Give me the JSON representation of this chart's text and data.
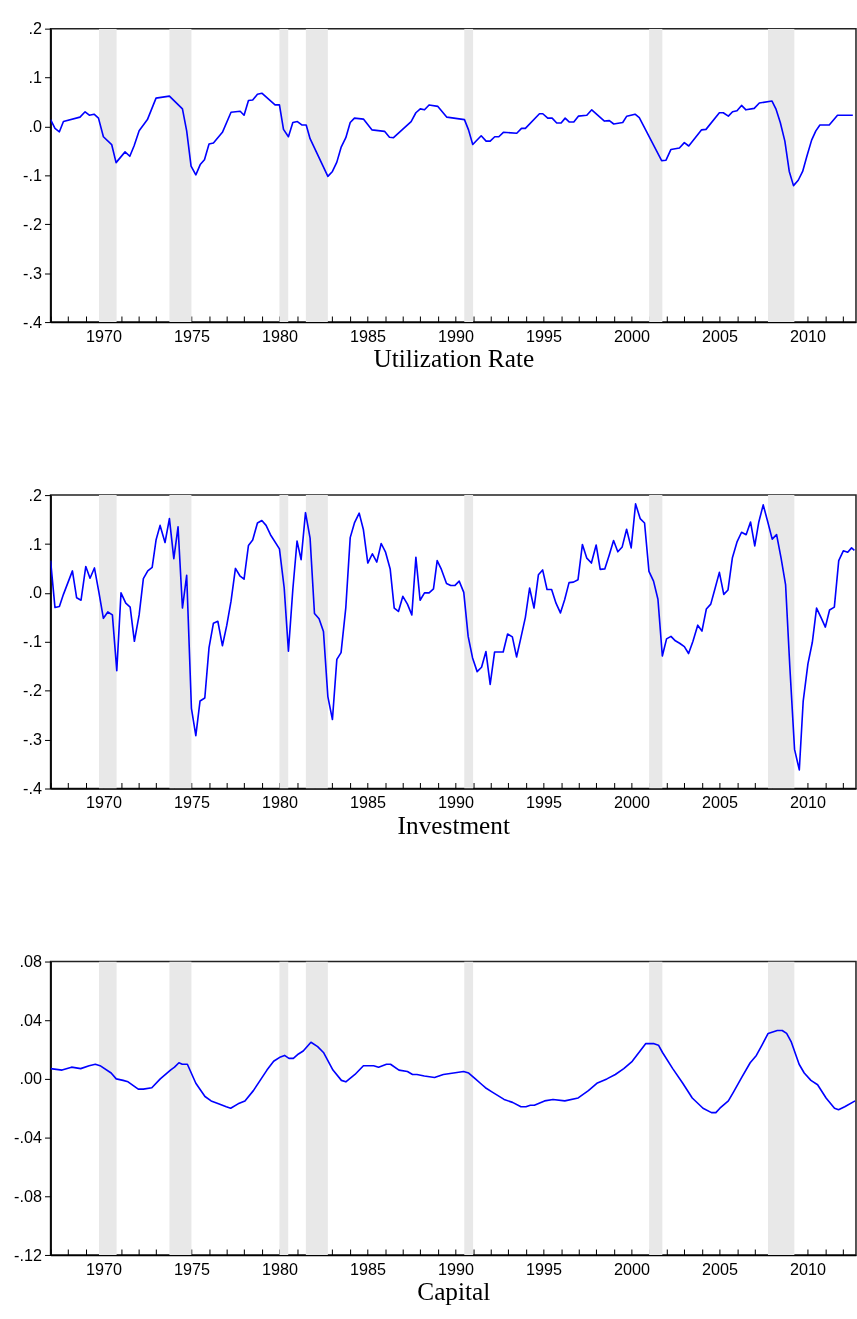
{
  "chart_data": [
    {
      "type": "line",
      "xlabel": "Utilization Rate",
      "x": [
        1967.0,
        1967.25,
        1967.5,
        1967.73,
        1968.67,
        1968.96,
        1969.2,
        1969.47,
        1969.72,
        1970.0,
        1970.47,
        1970.72,
        1971.23,
        1971.5,
        1971.74,
        1972.03,
        1972.5,
        1972.99,
        1973.75,
        1974.49,
        1974.73,
        1974.98,
        1975.25,
        1975.5,
        1975.74,
        1976.0,
        1976.25,
        1976.76,
        1977.25,
        1977.77,
        1977.99,
        1978.24,
        1978.48,
        1978.75,
        1979.0,
        1979.75,
        1980.0,
        1980.23,
        1980.51,
        1980.76,
        1981.02,
        1981.27,
        1981.52,
        1981.74,
        1982.75,
        1983.01,
        1983.26,
        1983.5,
        1983.77,
        1984.02,
        1984.26,
        1984.77,
        1985.25,
        1985.97,
        1986.25,
        1986.48,
        1987.48,
        1987.75,
        1988.0,
        1988.24,
        1988.5,
        1989.0,
        1989.51,
        1990.51,
        1990.74,
        1990.98,
        1991.46,
        1991.74,
        1991.97,
        1992.23,
        1992.46,
        1992.72,
        1993.48,
        1993.75,
        1993.97,
        1994.77,
        1994.96,
        1995.24,
        1995.49,
        1995.75,
        1996.0,
        1996.23,
        1996.47,
        1996.72,
        1996.98,
        1997.46,
        1997.74,
        1998.46,
        1998.74,
        1998.99,
        1999.5,
        1999.73,
        2000.2,
        2000.44,
        2001.71,
        2001.96,
        2002.24,
        2002.72,
        2003.0,
        2003.25,
        2003.98,
        2004.23,
        2004.99,
        2005.21,
        2005.5,
        2005.74,
        2005.99,
        2006.25,
        2006.5,
        2006.97,
        2007.26,
        2007.98,
        2008.2,
        2008.45,
        2008.71,
        2008.96,
        2009.2,
        2009.47,
        2009.72,
        2009.96,
        2010.23,
        2010.47,
        2010.7,
        2011.23,
        2011.7,
        2012.57
      ],
      "series": [
        {
          "color": "#0000ff",
          "values": [
            0.014,
            -0.004,
            -0.011,
            0.01,
            0.019,
            0.03,
            0.023,
            0.025,
            0.017,
            -0.021,
            -0.037,
            -0.074,
            -0.052,
            -0.061,
            -0.04,
            -0.009,
            0.014,
            0.058,
            0.062,
            0.036,
            -0.009,
            -0.081,
            -0.099,
            -0.078,
            -0.068,
            -0.036,
            -0.034,
            -0.012,
            0.029,
            0.031,
            0.023,
            0.053,
            0.054,
            0.066,
            0.068,
            0.044,
            0.044,
            -0.006,
            -0.021,
            0.008,
            0.01,
            0.003,
            0.003,
            -0.025,
            -0.102,
            -0.092,
            -0.073,
            -0.043,
            -0.023,
            0.008,
            0.017,
            0.015,
            -0.007,
            -0.01,
            -0.022,
            -0.023,
            0.01,
            0.028,
            0.036,
            0.034,
            0.044,
            0.041,
            0.019,
            0.014,
            -0.007,
            -0.037,
            -0.019,
            -0.03,
            -0.03,
            -0.021,
            -0.021,
            -0.012,
            -0.014,
            -0.004,
            -0.004,
            0.026,
            0.026,
            0.017,
            0.017,
            0.007,
            0.007,
            0.017,
            0.009,
            0.009,
            0.021,
            0.023,
            0.034,
            0.011,
            0.012,
            0.005,
            0.008,
            0.021,
            0.025,
            0.018,
            -0.07,
            -0.069,
            -0.047,
            -0.044,
            -0.033,
            -0.04,
            -0.007,
            -0.006,
            0.028,
            0.028,
            0.021,
            0.03,
            0.032,
            0.043,
            0.034,
            0.037,
            0.048,
            0.052,
            0.036,
            0.008,
            -0.03,
            -0.092,
            -0.121,
            -0.11,
            -0.092,
            -0.061,
            -0.028,
            -0.009,
            0.003,
            0.003,
            0.023,
            0.023
          ]
        }
      ],
      "xlim": [
        1967,
        2012.75
      ],
      "xticks": [
        {
          "value": 1967,
          "label": null
        },
        {
          "value": 1968,
          "label": null
        },
        {
          "value": 1969,
          "label": null
        },
        1970,
        {
          "value": 1971,
          "label": null
        },
        {
          "value": 1972,
          "label": null
        },
        {
          "value": 1973,
          "label": null
        },
        {
          "value": 1974,
          "label": null
        },
        1975,
        {
          "value": 1976,
          "label": null
        },
        {
          "value": 1977,
          "label": null
        },
        {
          "value": 1978,
          "label": null
        },
        {
          "value": 1979,
          "label": null
        },
        1980,
        {
          "value": 1981,
          "label": null
        },
        {
          "value": 1982,
          "label": null
        },
        {
          "value": 1983,
          "label": null
        },
        {
          "value": 1984,
          "label": null
        },
        1985,
        {
          "value": 1986,
          "label": null
        },
        {
          "value": 1987,
          "label": null
        },
        {
          "value": 1988,
          "label": null
        },
        {
          "value": 1989,
          "label": null
        },
        1990,
        {
          "value": 1991,
          "label": null
        },
        {
          "value": 1992,
          "label": null
        },
        {
          "value": 1993,
          "label": null
        },
        {
          "value": 1994,
          "label": null
        },
        1995,
        {
          "value": 1996,
          "label": null
        },
        {
          "value": 1997,
          "label": null
        },
        {
          "value": 1998,
          "label": null
        },
        {
          "value": 1999,
          "label": null
        },
        2000,
        {
          "value": 2001,
          "label": null
        },
        {
          "value": 2002,
          "label": null
        },
        {
          "value": 2003,
          "label": null
        },
        {
          "value": 2004,
          "label": null
        },
        2005,
        {
          "value": 2006,
          "label": null
        },
        {
          "value": 2007,
          "label": null
        },
        {
          "value": 2008,
          "label": null
        },
        {
          "value": 2009,
          "label": null
        },
        2010,
        {
          "value": 2011,
          "label": null
        },
        {
          "value": 2012,
          "label": null
        }
      ],
      "ylim": [
        -0.4,
        0.2
      ],
      "yticks": [
        {
          "value": -0.4,
          "label": "-.4"
        },
        {
          "value": -0.3,
          "label": "-.3"
        },
        {
          "value": -0.2,
          "label": "-.2"
        },
        {
          "value": -0.1,
          "label": "-.1"
        },
        {
          "value": 0,
          "label": ".0"
        },
        {
          "value": 0.1,
          "label": ".1"
        },
        {
          "value": 0.2,
          "label": ".2"
        }
      ],
      "bands": [
        {
          "axis": "x",
          "from": 1969.75,
          "to": 1970.75,
          "color": "#e8e8e8"
        },
        {
          "axis": "x",
          "from": 1973.75,
          "to": 1975.0,
          "color": "#e8e8e8"
        },
        {
          "axis": "x",
          "from": 1980.0,
          "to": 1980.5,
          "color": "#e8e8e8"
        },
        {
          "axis": "x",
          "from": 1981.5,
          "to": 1982.75,
          "color": "#e8e8e8"
        },
        {
          "axis": "x",
          "from": 1990.5,
          "to": 1991.0,
          "color": "#e8e8e8"
        },
        {
          "axis": "x",
          "from": 2001.0,
          "to": 2001.75,
          "color": "#e8e8e8"
        },
        {
          "axis": "x",
          "from": 2007.75,
          "to": 2009.25,
          "color": "#e8e8e8"
        }
      ]
    },
    {
      "type": "line",
      "xlabel": "Investment",
      "x": [
        1967.0,
        1967.25,
        1967.5,
        1967.73,
        1968.24,
        1968.48,
        1968.73,
        1969.0,
        1969.24,
        1969.49,
        1969.75,
        1970.0,
        1970.25,
        1970.51,
        1970.76,
        1971.0,
        1971.27,
        1971.52,
        1971.76,
        1972.03,
        1972.27,
        1972.52,
        1972.77,
        1972.99,
        1973.22,
        1973.5,
        1973.75,
        1974.0,
        1974.24,
        1974.49,
        1974.73,
        1975.0,
        1975.25,
        1975.49,
        1975.76,
        1976.0,
        1976.25,
        1976.5,
        1976.76,
        1977.01,
        1977.25,
        1977.5,
        1977.75,
        1977.99,
        1978.24,
        1978.48,
        1978.75,
        1979.0,
        1979.24,
        1979.49,
        1980.0,
        1980.27,
        1980.51,
        1980.76,
        1981.0,
        1981.23,
        1981.48,
        1981.74,
        1981.99,
        1982.25,
        1982.5,
        1982.75,
        1983.01,
        1983.26,
        1983.5,
        1983.77,
        1984.02,
        1984.26,
        1984.53,
        1984.77,
        1985.02,
        1985.28,
        1985.53,
        1985.78,
        1986.02,
        1986.29,
        1986.52,
        1986.76,
        1987.01,
        1987.27,
        1987.52,
        1987.75,
        1987.99,
        1988.24,
        1988.5,
        1988.75,
        1988.96,
        1989.2,
        1989.49,
        1989.73,
        1989.96,
        1990.21,
        1990.47,
        1990.72,
        1990.97,
        1991.23,
        1991.48,
        1991.73,
        1991.97,
        1992.22,
        1992.71,
        1992.96,
        1993.23,
        1993.47,
        1993.72,
        1993.97,
        1994.21,
        1994.46,
        1994.71,
        1994.95,
        1995.2,
        1995.46,
        1995.71,
        1995.96,
        1996.2,
        1996.45,
        1996.7,
        1996.96,
        1997.21,
        1997.46,
        1997.72,
        1997.99,
        1998.22,
        1998.48,
        1998.73,
        1998.98,
        1999.22,
        1999.47,
        1999.72,
        1999.98,
        2000.23,
        2000.49,
        2000.74,
        2000.99,
        2001.25,
        2001.5,
        2001.75,
        2001.99,
        2002.24,
        2002.49,
        2002.73,
        2003.0,
        2003.24,
        2003.49,
        2003.76,
        2004.0,
        2004.25,
        2004.5,
        2004.72,
        2004.99,
        2005.24,
        2005.48,
        2005.73,
        2006.0,
        2006.25,
        2006.51,
        2006.76,
        2007.0,
        2007.23,
        2007.48,
        2007.74,
        2007.99,
        2008.24,
        2008.5,
        2008.75,
        2008.99,
        2009.26,
        2009.53,
        2009.75,
        2010.02,
        2010.27,
        2010.51,
        2010.76,
        2011.01,
        2011.25,
        2011.52,
        2011.77,
        2012.03,
        2012.28,
        2012.5,
        2012.66
      ],
      "series": [
        {
          "color": "#0000ff",
          "values": [
            0.066,
            -0.03,
            -0.028,
            -0.003,
            0.045,
            -0.01,
            -0.015,
            0.054,
            0.03,
            0.051,
            0.0,
            -0.052,
            -0.039,
            -0.045,
            -0.159,
            0.0,
            -0.021,
            -0.029,
            -0.099,
            -0.045,
            0.029,
            0.045,
            0.052,
            0.108,
            0.138,
            0.103,
            0.152,
            0.07,
            0.135,
            -0.031,
            0.036,
            -0.236,
            -0.292,
            -0.221,
            -0.215,
            -0.112,
            -0.062,
            -0.058,
            -0.108,
            -0.066,
            -0.017,
            0.05,
            0.035,
            0.028,
            0.097,
            0.108,
            0.143,
            0.148,
            0.138,
            0.119,
            0.09,
            0.01,
            -0.119,
            0.007,
            0.106,
            0.068,
            0.164,
            0.112,
            -0.042,
            -0.053,
            -0.079,
            -0.212,
            -0.259,
            -0.136,
            -0.122,
            -0.03,
            0.113,
            0.143,
            0.163,
            0.129,
            0.061,
            0.08,
            0.063,
            0.101,
            0.084,
            0.049,
            -0.031,
            -0.038,
            -0.007,
            -0.023,
            -0.045,
            0.073,
            -0.015,
            0.0,
            0.0,
            0.008,
            0.066,
            0.048,
            0.019,
            0.015,
            0.015,
            0.024,
            0.001,
            -0.089,
            -0.133,
            -0.161,
            -0.152,
            -0.12,
            -0.187,
            -0.121,
            -0.121,
            -0.084,
            -0.09,
            -0.131,
            -0.091,
            -0.05,
            0.01,
            -0.031,
            0.037,
            0.047,
            0.007,
            0.007,
            -0.021,
            -0.041,
            -0.014,
            0.021,
            0.022,
            0.027,
            0.099,
            0.071,
            0.061,
            0.098,
            0.048,
            0.049,
            0.077,
            0.107,
            0.084,
            0.094,
            0.13,
            0.092,
            0.182,
            0.152,
            0.143,
            0.044,
            0.024,
            -0.013,
            -0.129,
            -0.094,
            -0.089,
            -0.098,
            -0.103,
            -0.11,
            -0.124,
            -0.099,
            -0.066,
            -0.078,
            -0.033,
            -0.023,
            0.006,
            0.042,
            -0.003,
            0.006,
            0.072,
            0.105,
            0.124,
            0.119,
            0.145,
            0.096,
            0.145,
            0.18,
            0.145,
            0.11,
            0.119,
            0.07,
            0.017,
            -0.15,
            -0.32,
            -0.362,
            -0.222,
            -0.145,
            -0.101,
            -0.031,
            -0.05,
            -0.07,
            -0.035,
            -0.029,
            0.066,
            0.086,
            0.083,
            0.092,
            0.087
          ]
        }
      ],
      "xlim": [
        1967,
        2012.75
      ],
      "xticks": [
        {
          "value": 1967,
          "label": null
        },
        {
          "value": 1968,
          "label": null
        },
        {
          "value": 1969,
          "label": null
        },
        1970,
        {
          "value": 1971,
          "label": null
        },
        {
          "value": 1972,
          "label": null
        },
        {
          "value": 1973,
          "label": null
        },
        {
          "value": 1974,
          "label": null
        },
        1975,
        {
          "value": 1976,
          "label": null
        },
        {
          "value": 1977,
          "label": null
        },
        {
          "value": 1978,
          "label": null
        },
        {
          "value": 1979,
          "label": null
        },
        1980,
        {
          "value": 1981,
          "label": null
        },
        {
          "value": 1982,
          "label": null
        },
        {
          "value": 1983,
          "label": null
        },
        {
          "value": 1984,
          "label": null
        },
        1985,
        {
          "value": 1986,
          "label": null
        },
        {
          "value": 1987,
          "label": null
        },
        {
          "value": 1988,
          "label": null
        },
        {
          "value": 1989,
          "label": null
        },
        1990,
        {
          "value": 1991,
          "label": null
        },
        {
          "value": 1992,
          "label": null
        },
        {
          "value": 1993,
          "label": null
        },
        {
          "value": 1994,
          "label": null
        },
        1995,
        {
          "value": 1996,
          "label": null
        },
        {
          "value": 1997,
          "label": null
        },
        {
          "value": 1998,
          "label": null
        },
        {
          "value": 1999,
          "label": null
        },
        2000,
        {
          "value": 2001,
          "label": null
        },
        {
          "value": 2002,
          "label": null
        },
        {
          "value": 2003,
          "label": null
        },
        {
          "value": 2004,
          "label": null
        },
        2005,
        {
          "value": 2006,
          "label": null
        },
        {
          "value": 2007,
          "label": null
        },
        {
          "value": 2008,
          "label": null
        },
        {
          "value": 2009,
          "label": null
        },
        2010,
        {
          "value": 2011,
          "label": null
        },
        {
          "value": 2012,
          "label": null
        }
      ],
      "ylim": [
        -0.4,
        0.2
      ],
      "yticks": [
        {
          "value": -0.4,
          "label": "-.4"
        },
        {
          "value": -0.3,
          "label": "-.3"
        },
        {
          "value": -0.2,
          "label": "-.2"
        },
        {
          "value": -0.1,
          "label": "-.1"
        },
        {
          "value": 0,
          "label": ".0"
        },
        {
          "value": 0.1,
          "label": ".1"
        },
        {
          "value": 0.2,
          "label": ".2"
        }
      ],
      "bands": [
        {
          "axis": "x",
          "from": 1969.75,
          "to": 1970.75,
          "color": "#e8e8e8"
        },
        {
          "axis": "x",
          "from": 1973.75,
          "to": 1975.0,
          "color": "#e8e8e8"
        },
        {
          "axis": "x",
          "from": 1980.0,
          "to": 1980.5,
          "color": "#e8e8e8"
        },
        {
          "axis": "x",
          "from": 1981.5,
          "to": 1982.75,
          "color": "#e8e8e8"
        },
        {
          "axis": "x",
          "from": 1990.5,
          "to": 1991.0,
          "color": "#e8e8e8"
        },
        {
          "axis": "x",
          "from": 2001.0,
          "to": 2001.75,
          "color": "#e8e8e8"
        },
        {
          "axis": "x",
          "from": 2007.75,
          "to": 2009.25,
          "color": "#e8e8e8"
        }
      ]
    },
    {
      "type": "line",
      "xlabel": "Capital",
      "x": [
        1967.0,
        1967.65,
        1968.19,
        1968.71,
        1969.19,
        1969.54,
        1969.81,
        1970.44,
        1970.73,
        1971.12,
        1971.4,
        1971.98,
        1972.27,
        1972.75,
        1973.23,
        1973.81,
        1974.04,
        1974.29,
        1974.48,
        1974.77,
        1975.25,
        1975.77,
        1976.12,
        1976.54,
        1976.98,
        1977.23,
        1977.65,
        1978.04,
        1978.52,
        1979.29,
        1979.67,
        1980.06,
        1980.29,
        1980.54,
        1980.79,
        1981.08,
        1981.35,
        1981.79,
        1982.17,
        1982.5,
        1983.04,
        1983.52,
        1983.77,
        1984.29,
        1984.77,
        1985.35,
        1985.63,
        1986.08,
        1986.31,
        1986.79,
        1987.27,
        1987.56,
        1987.81,
        1988.23,
        1988.81,
        1989.31,
        1989.89,
        1990.46,
        1990.75,
        1991.13,
        1991.51,
        1991.7,
        1992.09,
        1992.76,
        1993.24,
        1993.72,
        1994.0,
        1994.25,
        1994.48,
        1995.06,
        1995.54,
        1996.21,
        1996.97,
        1997.55,
        1998.03,
        1998.6,
        1999.08,
        1999.56,
        2000.04,
        2000.42,
        2000.8,
        2001.28,
        2001.53,
        2001.76,
        2002.34,
        2002.91,
        2003.45,
        2004.06,
        2004.54,
        2004.79,
        2005.02,
        2005.5,
        2005.79,
        2006.26,
        2006.74,
        2007.09,
        2007.41,
        2007.76,
        2008.28,
        2008.56,
        2008.81,
        2009.08,
        2009.52,
        2009.81,
        2010.19,
        2010.57,
        2011.05,
        2011.53,
        2011.76,
        2012.11,
        2012.7
      ],
      "series": [
        {
          "color": "#0000ff",
          "values": [
            0.007,
            0.006,
            0.008,
            0.007,
            0.009,
            0.01,
            0.009,
            0.004,
            0.0,
            -0.001,
            -0.002,
            -0.007,
            -0.007,
            -0.006,
            0.0,
            0.006,
            0.008,
            0.011,
            0.01,
            0.01,
            -0.003,
            -0.012,
            -0.015,
            -0.017,
            -0.019,
            -0.02,
            -0.017,
            -0.015,
            -0.008,
            0.006,
            0.012,
            0.015,
            0.016,
            0.014,
            0.014,
            0.017,
            0.019,
            0.025,
            0.022,
            0.018,
            0.006,
            -0.001,
            -0.002,
            0.003,
            0.009,
            0.009,
            0.008,
            0.01,
            0.01,
            0.006,
            0.005,
            0.003,
            0.003,
            0.002,
            0.001,
            0.003,
            0.004,
            0.005,
            0.004,
            0.0,
            -0.004,
            -0.006,
            -0.009,
            -0.014,
            -0.016,
            -0.019,
            -0.019,
            -0.018,
            -0.018,
            -0.015,
            -0.014,
            -0.015,
            -0.013,
            -0.008,
            -0.003,
            0.0,
            0.003,
            0.007,
            0.012,
            0.018,
            0.024,
            0.024,
            0.023,
            0.018,
            0.007,
            -0.003,
            -0.013,
            -0.02,
            -0.023,
            -0.023,
            -0.02,
            -0.015,
            -0.009,
            0.001,
            0.011,
            0.016,
            0.023,
            0.031,
            0.033,
            0.033,
            0.031,
            0.025,
            0.01,
            0.004,
            -0.001,
            -0.004,
            -0.013,
            -0.02,
            -0.021,
            -0.019,
            -0.015
          ]
        }
      ],
      "xlim": [
        1967,
        2012.75
      ],
      "xticks": [
        {
          "value": 1967,
          "label": null
        },
        {
          "value": 1968,
          "label": null
        },
        {
          "value": 1969,
          "label": null
        },
        1970,
        {
          "value": 1971,
          "label": null
        },
        {
          "value": 1972,
          "label": null
        },
        {
          "value": 1973,
          "label": null
        },
        {
          "value": 1974,
          "label": null
        },
        1975,
        {
          "value": 1976,
          "label": null
        },
        {
          "value": 1977,
          "label": null
        },
        {
          "value": 1978,
          "label": null
        },
        {
          "value": 1979,
          "label": null
        },
        1980,
        {
          "value": 1981,
          "label": null
        },
        {
          "value": 1982,
          "label": null
        },
        {
          "value": 1983,
          "label": null
        },
        {
          "value": 1984,
          "label": null
        },
        1985,
        {
          "value": 1986,
          "label": null
        },
        {
          "value": 1987,
          "label": null
        },
        {
          "value": 1988,
          "label": null
        },
        {
          "value": 1989,
          "label": null
        },
        1990,
        {
          "value": 1991,
          "label": null
        },
        {
          "value": 1992,
          "label": null
        },
        {
          "value": 1993,
          "label": null
        },
        {
          "value": 1994,
          "label": null
        },
        1995,
        {
          "value": 1996,
          "label": null
        },
        {
          "value": 1997,
          "label": null
        },
        {
          "value": 1998,
          "label": null
        },
        {
          "value": 1999,
          "label": null
        },
        2000,
        {
          "value": 2001,
          "label": null
        },
        {
          "value": 2002,
          "label": null
        },
        {
          "value": 2003,
          "label": null
        },
        {
          "value": 2004,
          "label": null
        },
        2005,
        {
          "value": 2006,
          "label": null
        },
        {
          "value": 2007,
          "label": null
        },
        {
          "value": 2008,
          "label": null
        },
        {
          "value": 2009,
          "label": null
        },
        2010,
        {
          "value": 2011,
          "label": null
        },
        {
          "value": 2012,
          "label": null
        }
      ],
      "ylim": [
        -0.12,
        0.08
      ],
      "yticks": [
        {
          "value": -0.12,
          "label": "-.12"
        },
        {
          "value": -0.08,
          "label": "-.08"
        },
        {
          "value": -0.04,
          "label": "-.04"
        },
        {
          "value": 0,
          "label": ".00"
        },
        {
          "value": 0.04,
          "label": ".04"
        },
        {
          "value": 0.08,
          "label": ".08"
        }
      ],
      "bands": [
        {
          "axis": "x",
          "from": 1969.75,
          "to": 1970.75,
          "color": "#e8e8e8"
        },
        {
          "axis": "x",
          "from": 1973.75,
          "to": 1975.0,
          "color": "#e8e8e8"
        },
        {
          "axis": "x",
          "from": 1980.0,
          "to": 1980.5,
          "color": "#e8e8e8"
        },
        {
          "axis": "x",
          "from": 1981.5,
          "to": 1982.75,
          "color": "#e8e8e8"
        },
        {
          "axis": "x",
          "from": 1990.5,
          "to": 1991.0,
          "color": "#e8e8e8"
        },
        {
          "axis": "x",
          "from": 2001.0,
          "to": 2001.75,
          "color": "#e8e8e8"
        },
        {
          "axis": "x",
          "from": 2007.75,
          "to": 2009.25,
          "color": "#e8e8e8"
        }
      ]
    }
  ]
}
